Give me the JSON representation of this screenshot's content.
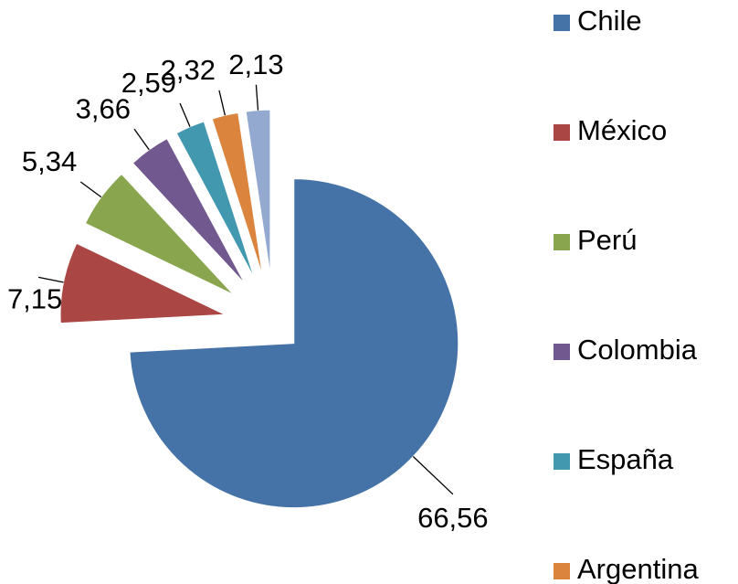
{
  "chart_data": {
    "type": "pie",
    "categories": [
      "Chile",
      "México",
      "Perú",
      "Colombia",
      "España",
      "Argentina",
      null
    ],
    "values": [
      66.56,
      7.15,
      5.34,
      3.66,
      2.59,
      2.32,
      2.13
    ],
    "value_labels": [
      "66,56",
      "7,15",
      "5,34",
      "3,66",
      "2,59",
      "2,32",
      "2,13"
    ],
    "colors": [
      "#4572a7",
      "#aa4643",
      "#89a54e",
      "#71588f",
      "#4198af",
      "#db843d",
      "#93a9cf"
    ],
    "legend": "right"
  }
}
